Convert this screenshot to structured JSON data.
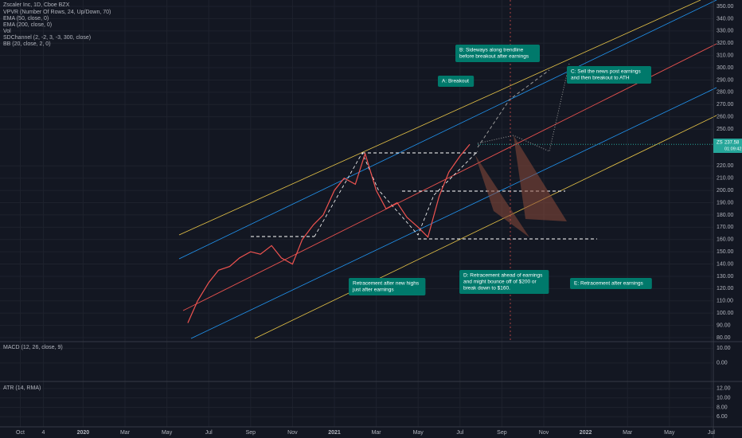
{
  "chart_data": {
    "type": "line",
    "title": "Zscaler Inc, 1D, Cboe BZX",
    "indicators": [
      "VPVR (Number Of Rows, 24, Up/Down, 70)",
      "EMA (50, close, 0)",
      "EMA (200, close, 0)",
      "Vol",
      "SDChannel (2, -2, 3, -3, 300, close)",
      "BB (20, close, 2, 0)"
    ],
    "x": [
      "2020-06-01",
      "2020-06-15",
      "2020-07-01",
      "2020-07-15",
      "2020-08-01",
      "2020-08-15",
      "2020-09-01",
      "2020-09-15",
      "2020-10-01",
      "2020-10-15",
      "2020-11-01",
      "2020-11-15",
      "2020-12-01",
      "2020-12-15",
      "2021-01-01",
      "2021-01-15",
      "2021-02-01",
      "2021-02-15",
      "2021-03-01",
      "2021-03-15",
      "2021-04-01",
      "2021-04-15",
      "2021-05-01",
      "2021-05-15",
      "2021-06-01",
      "2021-06-15",
      "2021-07-01",
      "2021-07-15"
    ],
    "values": [
      92,
      110,
      125,
      135,
      138,
      145,
      150,
      148,
      155,
      145,
      140,
      160,
      172,
      180,
      200,
      210,
      205,
      230,
      200,
      185,
      190,
      178,
      170,
      162,
      195,
      215,
      228,
      237.58
    ],
    "color": "#ef5350",
    "ylim": [
      80,
      350
    ],
    "yticks": [
      {
        "value": 350,
        "label": "350.00"
      },
      {
        "value": 340,
        "label": "340.00"
      },
      {
        "value": 330,
        "label": "330.00"
      },
      {
        "value": 320,
        "label": "320.00"
      },
      {
        "value": 310,
        "label": "310.00"
      },
      {
        "value": 300,
        "label": "300.00"
      },
      {
        "value": 290,
        "label": "290.00"
      },
      {
        "value": 280,
        "label": "280.00"
      },
      {
        "value": 270,
        "label": "270.00"
      },
      {
        "value": 260,
        "label": "260.00"
      },
      {
        "value": 250,
        "label": "250.00"
      },
      {
        "value": 220,
        "label": "220.00"
      },
      {
        "value": 210,
        "label": "210.00"
      },
      {
        "value": 200,
        "label": "200.00"
      },
      {
        "value": 190,
        "label": "190.00"
      },
      {
        "value": 180,
        "label": "180.00"
      },
      {
        "value": 170,
        "label": "170.00"
      },
      {
        "value": 160,
        "label": "160.00"
      },
      {
        "value": 150,
        "label": "150.00"
      },
      {
        "value": 140,
        "label": "140.00"
      },
      {
        "value": 130,
        "label": "130.00"
      },
      {
        "value": 120,
        "label": "120.00"
      },
      {
        "value": 110,
        "label": "110.00"
      },
      {
        "value": 100,
        "label": "100.00"
      },
      {
        "value": 90,
        "label": "90.00"
      },
      {
        "value": 80,
        "label": "80.00"
      }
    ],
    "xticks": [
      {
        "value": "2019-10-01",
        "label": "Oct"
      },
      {
        "value": "2019-11-04",
        "label": "4"
      },
      {
        "value": "2020-01-01",
        "label": "2020"
      },
      {
        "value": "2020-03-01",
        "label": "Mar"
      },
      {
        "value": "2020-05-01",
        "label": "May"
      },
      {
        "value": "2020-07-01",
        "label": "Jul"
      },
      {
        "value": "2020-09-01",
        "label": "Sep"
      },
      {
        "value": "2020-11-01",
        "label": "Nov"
      },
      {
        "value": "2021-01-01",
        "label": "2021"
      },
      {
        "value": "2021-03-01",
        "label": "Mar"
      },
      {
        "value": "2021-05-01",
        "label": "May"
      },
      {
        "value": "2021-07-01",
        "label": "Jul"
      },
      {
        "value": "2021-09-01",
        "label": "Sep"
      },
      {
        "value": "2021-11-01",
        "label": "Nov"
      },
      {
        "value": "2022-01-01",
        "label": "2022"
      },
      {
        "value": "2022-03-01",
        "label": "Mar"
      },
      {
        "value": "2022-05-01",
        "label": "May"
      },
      {
        "value": "2022-07-01",
        "label": "Jul"
      }
    ],
    "last_price": {
      "symbol": "ZS",
      "value": {
        "value": 237.58,
        "label": "237.58"
      },
      "countdown": "01:09:42"
    },
    "annotations": [
      [
        "A: Breakout"
      ],
      [
        "B: Sideways along trendline",
        "before breakout after earnings"
      ],
      [
        "C: Sell the news post earnings",
        "and then breakout to ATH"
      ],
      [
        "D: Retracement ahead of earnings",
        "and might bounce off of $200 or",
        "break down to $160."
      ],
      [
        "E: Retracement after earnings"
      ],
      [
        "Retracement after new highs",
        "just after earnings"
      ]
    ],
    "macd": {
      "title": "MACD (12, 26, close, 9)",
      "ylim": [
        -12,
        14
      ],
      "yticks": [
        {
          "value": 10,
          "label": "10.00"
        },
        {
          "value": 0,
          "label": "0.00"
        }
      ]
    },
    "atr": {
      "title": "ATR (14, RMA)",
      "ylim": [
        4,
        13
      ],
      "yticks": [
        {
          "value": 12,
          "label": "12.00"
        },
        {
          "value": 10,
          "label": "10.00"
        },
        {
          "value": 8,
          "label": "8.00"
        },
        {
          "value": 6,
          "label": "6.00"
        }
      ]
    }
  }
}
